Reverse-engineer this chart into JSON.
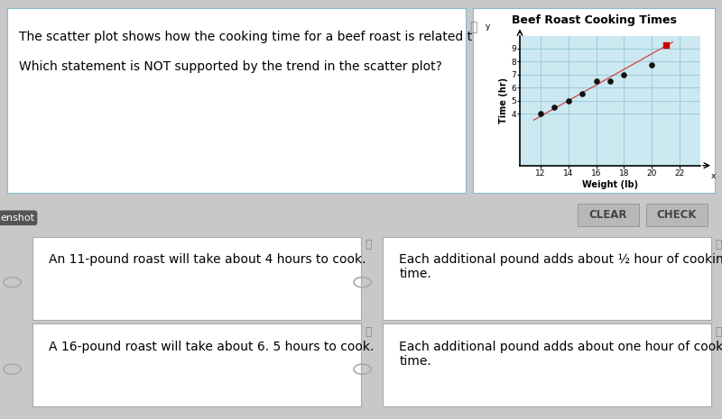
{
  "title": "Beef Roast Cooking Times",
  "xlabel": "Weight (lb)",
  "ylabel": "Time (hr)",
  "scatter_x": [
    12,
    13,
    14,
    15,
    16,
    17,
    18,
    20
  ],
  "scatter_y": [
    4.0,
    4.5,
    5.0,
    5.5,
    6.5,
    6.5,
    7.0,
    7.75
  ],
  "outlier_x": [
    21
  ],
  "outlier_y": [
    9.25
  ],
  "trend_x": [
    11.5,
    21.5
  ],
  "trend_y": [
    3.5,
    9.5
  ],
  "xlim": [
    10.5,
    23.5
  ],
  "ylim": [
    0,
    10
  ],
  "xticks": [
    12,
    14,
    16,
    18,
    20,
    22
  ],
  "yticks": [
    4,
    5,
    6,
    7,
    8,
    9
  ],
  "scatter_color": "#111111",
  "outlier_color": "#cc0000",
  "trend_color": "#cc4444",
  "grid_color": "#99ccdd",
  "bg_color": "#cce8f0",
  "outer_bg": "#c8c8c8",
  "box_bg": "#ffffff",
  "box_border": "#aaaaaa",
  "title_fontsize": 8,
  "label_fontsize": 7,
  "tick_fontsize": 6.5,
  "answer_fontsize": 10,
  "question_fontsize": 10,
  "text_question_line1": "The scatter plot shows how the cooking time for a beef roast is related to its weight.",
  "text_question_line2": "Which statement is NOT supported by the trend in the scatter plot?",
  "answer1": "An 11-pound roast will take about 4 hours to cook.",
  "answer2": "Each additional pound adds about ½ hour of cooking\ntime.",
  "answer3": "A 16-pound roast will take about 6. 5 hours to cook.",
  "answer4": "Each additional pound adds about one hour of cooking\ntime.",
  "btn_bg": "#b8b8b8",
  "btn_text_color": "#444444",
  "speaker_color": "#888888"
}
